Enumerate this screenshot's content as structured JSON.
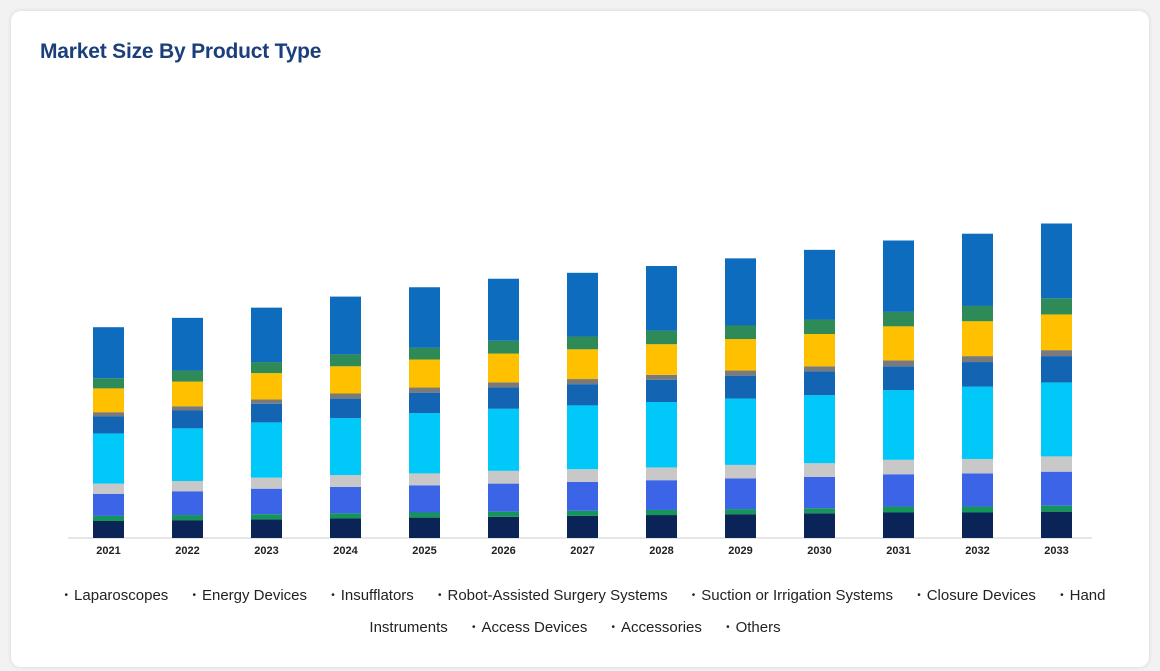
{
  "chart_data": {
    "type": "bar",
    "stacked": true,
    "title": "Market Size By Product Type",
    "categories": [
      "2021",
      "2022",
      "2023",
      "2024",
      "2025",
      "2026",
      "2027",
      "2028",
      "2029",
      "2030",
      "2031",
      "2032",
      "2033"
    ],
    "ylim": [
      0,
      440
    ],
    "grid": false,
    "legend_position": "bottom",
    "series": [
      {
        "name": "Laparoscopes",
        "color": "#0a2458",
        "values": [
          20,
          21,
          22,
          23,
          24,
          25,
          26,
          27,
          28,
          29,
          30,
          30,
          31
        ]
      },
      {
        "name": "Energy Devices",
        "color": "#14955a",
        "values": [
          6,
          6,
          6,
          6,
          6,
          6,
          6,
          6,
          6,
          6,
          7,
          7,
          7
        ]
      },
      {
        "name": "Insufflators",
        "color": "#3c64e6",
        "values": [
          26,
          28,
          30,
          31,
          32,
          33,
          34,
          35,
          36,
          37,
          38,
          39,
          40
        ]
      },
      {
        "name": "Robot-Assisted Surgery Systems",
        "color": "#c8c8c8",
        "values": [
          12,
          12,
          13,
          14,
          14,
          15,
          15,
          15,
          16,
          16,
          17,
          17,
          18
        ]
      },
      {
        "name": "Suction or Irrigation Systems",
        "color": "#00c8f8",
        "values": [
          59,
          62,
          65,
          67,
          71,
          73,
          75,
          77,
          78,
          80,
          82,
          85,
          87
        ]
      },
      {
        "name": "Closure Devices",
        "color": "#1464b4",
        "values": [
          20,
          21,
          22,
          23,
          24,
          25,
          25,
          26,
          27,
          28,
          28,
          29,
          31
        ]
      },
      {
        "name": "Hand Instruments",
        "color": "#7a7a7a",
        "values": [
          5,
          5,
          5,
          6,
          6,
          6,
          6,
          6,
          6,
          6,
          7,
          7,
          7
        ]
      },
      {
        "name": "Access Devices",
        "color": "#ffc000",
        "values": [
          28,
          29,
          31,
          32,
          33,
          34,
          35,
          36,
          37,
          38,
          40,
          41,
          42
        ]
      },
      {
        "name": "Accessories",
        "color": "#2e8b57",
        "values": [
          12,
          13,
          13,
          14,
          14,
          15,
          15,
          16,
          16,
          17,
          17,
          18,
          19
        ]
      },
      {
        "name": "Others",
        "color": "#0e6cbf",
        "values": [
          60,
          62,
          64,
          68,
          71,
          73,
          75,
          76,
          79,
          82,
          84,
          85,
          88
        ]
      }
    ]
  }
}
